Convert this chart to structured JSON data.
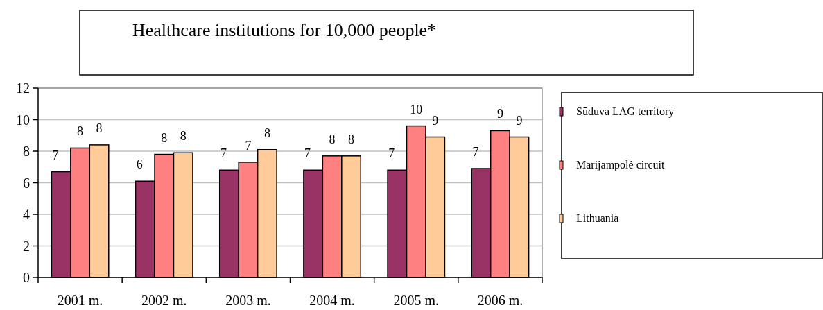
{
  "chart_data": {
    "type": "bar",
    "title": "Healthcare institutions for 10,000 people*",
    "categories": [
      "2001 m.",
      "2002 m.",
      "2003 m.",
      "2004 m.",
      "2005 m.",
      "2006 m."
    ],
    "series": [
      {
        "name": "Sūduva LAG territory",
        "color": "#993366",
        "values": [
          6.7,
          6.1,
          6.8,
          6.8,
          6.8,
          6.9
        ],
        "value_labels": [
          "7",
          "6",
          "7",
          "7",
          "7",
          "7"
        ]
      },
      {
        "name": "Marijampolė circuit",
        "color": "#ff8080",
        "values": [
          8.2,
          7.8,
          7.3,
          7.7,
          9.6,
          9.3
        ],
        "value_labels": [
          "8",
          "8",
          "7",
          "8",
          "10",
          "9"
        ]
      },
      {
        "name": "Lithuania",
        "color": "#ffcc99",
        "values": [
          8.4,
          7.9,
          8.1,
          7.7,
          8.9,
          8.9
        ],
        "value_labels": [
          "8",
          "8",
          "8",
          "8",
          "9",
          "9"
        ]
      }
    ],
    "ylim": [
      0,
      12
    ],
    "yticks": [
      0,
      2,
      4,
      6,
      8,
      10,
      12
    ],
    "grid": "y",
    "legend": "right"
  }
}
